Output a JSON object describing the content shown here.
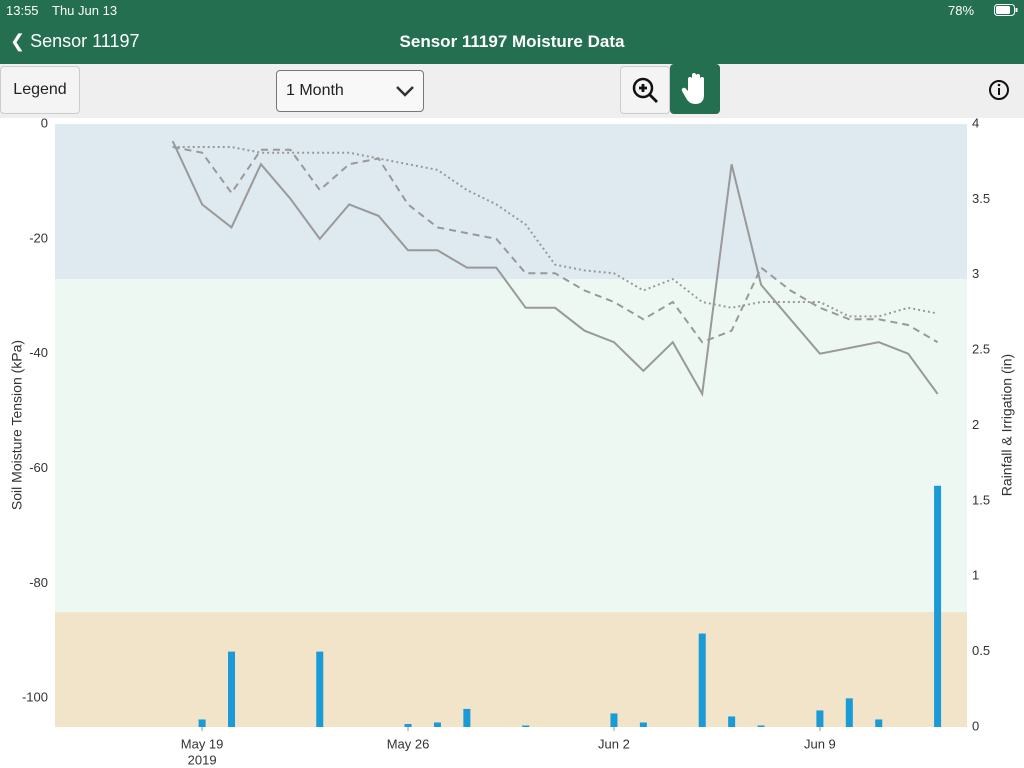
{
  "status_bar": {
    "time": "13:55",
    "date": "Thu Jun 13",
    "battery": "78%"
  },
  "nav_bar": {
    "back": "Sensor 11197",
    "title": "Sensor 11197 Moisture Data"
  },
  "toolbar": {
    "legend_button": "Legend",
    "range_select": "1 Month"
  },
  "chart_data": {
    "type": "line",
    "y_label": "Soil Moisture Tension (kPa)",
    "y2_label": "Rainfall & Irrigation (in)",
    "xlim": [
      "2019-05-14",
      "2019-06-14"
    ],
    "ylim": [
      -105,
      0
    ],
    "y2lim": [
      0,
      4
    ],
    "xticks": [
      {
        "value": "2019-05-19",
        "label": "May 19"
      },
      {
        "value": "2019-05-26",
        "label": "May 26"
      },
      {
        "value": "2019-06-02",
        "label": "Jun 2"
      },
      {
        "value": "2019-06-09",
        "label": "Jun 9"
      }
    ],
    "x_year": "2019",
    "yticks": [
      0,
      -20,
      -40,
      -60,
      -80,
      -100
    ],
    "y2ticks": [
      0,
      0.5,
      1,
      1.5,
      2,
      2.5,
      3,
      3.5,
      4
    ],
    "bands": [
      {
        "from": 0,
        "to": -27,
        "color": "#dfe9f0"
      },
      {
        "from": -27,
        "to": -85,
        "color": "#edf8f3"
      },
      {
        "from": -85,
        "to": -105,
        "color": "#f2e4c8"
      }
    ],
    "series": [
      {
        "type": "line",
        "dash": "solid",
        "color": "#999999",
        "x": [
          "2019-05-18",
          "2019-05-19",
          "2019-05-20",
          "2019-05-21",
          "2019-05-22",
          "2019-05-23",
          "2019-05-24",
          "2019-05-25",
          "2019-05-26",
          "2019-05-27",
          "2019-05-28",
          "2019-05-29",
          "2019-05-30",
          "2019-05-31",
          "2019-06-01",
          "2019-06-02",
          "2019-06-03",
          "2019-06-04",
          "2019-06-05",
          "2019-06-06",
          "2019-06-07",
          "2019-06-08",
          "2019-06-09",
          "2019-06-10",
          "2019-06-11",
          "2019-06-12",
          "2019-06-13"
        ],
        "values": [
          -3,
          -14,
          -18,
          -7,
          -13,
          -20,
          -14,
          -16,
          -22,
          -22,
          -25,
          -25,
          -32,
          -32,
          -36,
          -38,
          -43,
          -38,
          -47,
          -7,
          -28,
          -34,
          -40,
          -39,
          -38,
          -40,
          -47
        ]
      },
      {
        "type": "line",
        "dash": "dashed",
        "color": "#999999",
        "x": [
          "2019-05-18",
          "2019-05-19",
          "2019-05-20",
          "2019-05-21",
          "2019-05-22",
          "2019-05-23",
          "2019-05-24",
          "2019-05-25",
          "2019-05-26",
          "2019-05-27",
          "2019-05-28",
          "2019-05-29",
          "2019-05-30",
          "2019-05-31",
          "2019-06-01",
          "2019-06-02",
          "2019-06-03",
          "2019-06-04",
          "2019-06-05",
          "2019-06-06",
          "2019-06-07",
          "2019-06-08",
          "2019-06-09",
          "2019-06-10",
          "2019-06-11",
          "2019-06-12",
          "2019-06-13"
        ],
        "values": [
          -4,
          -5,
          -12,
          -4.5,
          -4.5,
          -11.5,
          -7,
          -6,
          -14,
          -18,
          -19,
          -20,
          -26,
          -26,
          -29,
          -31,
          -34,
          -31,
          -38,
          -36,
          -25,
          -29,
          -32,
          -34,
          -34,
          -35,
          -38
        ]
      },
      {
        "type": "line",
        "dash": "dotted",
        "color": "#999999",
        "x": [
          "2019-05-18",
          "2019-05-19",
          "2019-05-20",
          "2019-05-21",
          "2019-05-22",
          "2019-05-23",
          "2019-05-24",
          "2019-05-25",
          "2019-05-26",
          "2019-05-27",
          "2019-05-28",
          "2019-05-29",
          "2019-05-30",
          "2019-05-31",
          "2019-06-01",
          "2019-06-02",
          "2019-06-03",
          "2019-06-04",
          "2019-06-05",
          "2019-06-06",
          "2019-06-07",
          "2019-06-08",
          "2019-06-09",
          "2019-06-10",
          "2019-06-11",
          "2019-06-12",
          "2019-06-13"
        ],
        "values": [
          -4,
          -4,
          -4,
          -5,
          -5,
          -5,
          -5,
          -6,
          -7,
          -8,
          -11.5,
          -14,
          -17.5,
          -24.5,
          -25.5,
          -26,
          -29,
          -27,
          -31,
          -32,
          -31,
          -31,
          -31,
          -33.5,
          -33.5,
          -32,
          -33
        ]
      },
      {
        "type": "bar",
        "axis": "y2",
        "color": "#1a9bd7",
        "x": [
          "2019-05-19",
          "2019-05-20",
          "2019-05-23",
          "2019-05-26",
          "2019-05-27",
          "2019-05-28",
          "2019-05-30",
          "2019-06-02",
          "2019-06-03",
          "2019-06-05",
          "2019-06-06",
          "2019-06-07",
          "2019-06-09",
          "2019-06-10",
          "2019-06-11",
          "2019-06-13"
        ],
        "values": [
          0.05,
          0.5,
          0.5,
          0.02,
          0.03,
          0.12,
          0.01,
          0.09,
          0.03,
          0.62,
          0.07,
          0.01,
          0.11,
          0.19,
          0.05,
          1.6
        ]
      }
    ]
  }
}
